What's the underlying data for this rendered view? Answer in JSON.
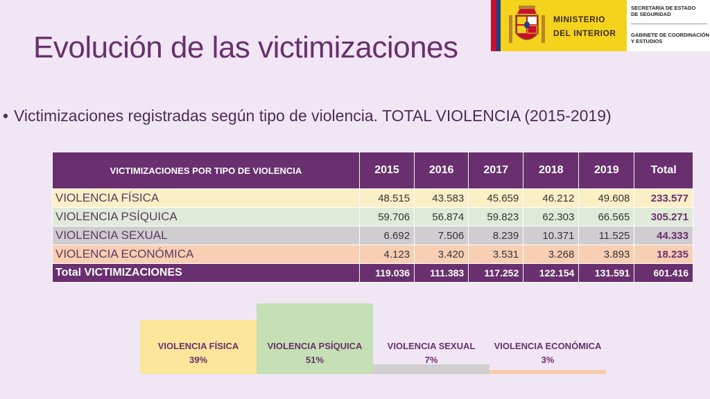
{
  "title": "Evolución de las victimizaciones",
  "subtitle": "Victimizaciones registradas según tipo de violencia. TOTAL VIOLENCIA (2015-2019)",
  "logo": {
    "ministerio_line1": "MINISTERIO",
    "ministerio_line2": "DEL  INTERIOR",
    "secretaria_line1": "SECRETARÍA DE ESTADO",
    "secretaria_line2": "DE SEGURIDAD",
    "gabinete_line1": "GABINETE DE COORDINACIÓN",
    "gabinete_line2": "Y ESTUDIOS"
  },
  "chart_data": [
    {
      "type": "table",
      "title": "VICTIMIZACIONES POR TIPO DE VIOLENCIA",
      "columns": [
        "VICTIMIZACIONES POR TIPO DE VIOLENCIA",
        "2015",
        "2016",
        "2017",
        "2018",
        "2019",
        "Total"
      ],
      "rows": [
        [
          "VIOLENCIA FÍSICA",
          "48.515",
          "43.583",
          "45.659",
          "46.212",
          "49.608",
          "233.577"
        ],
        [
          "VIOLENCIA PSÍQUICA",
          "59.706",
          "56.874",
          "59.823",
          "62.303",
          "66.565",
          "305.271"
        ],
        [
          "VIOLENCIA SEXUAL",
          "6.692",
          "7.506",
          "8.239",
          "10.371",
          "11.525",
          "44.333"
        ],
        [
          "VIOLENCIA ECONÓMICA",
          "4.123",
          "3.420",
          "3.531",
          "3.268",
          "3.893",
          "18.235"
        ],
        [
          "Total VICTIMIZACIONES",
          "119.036",
          "111.383",
          "117.252",
          "122.154",
          "131.591",
          "601.416"
        ]
      ]
    },
    {
      "type": "bar",
      "categories": [
        "VIOLENCIA FÍSICA",
        "VIOLENCIA PSÍQUICA",
        "VIOLENCIA SEXUAL",
        "VIOLENCIA ECONÓMICA"
      ],
      "values": [
        39,
        51,
        7,
        3
      ],
      "labels": [
        "39%",
        "51%",
        "7%",
        "3%"
      ],
      "colors": [
        "#fbe69a",
        "#c5e0b4",
        "#d0cece",
        "#f8cbad"
      ],
      "ylim": [
        0,
        51
      ]
    }
  ]
}
